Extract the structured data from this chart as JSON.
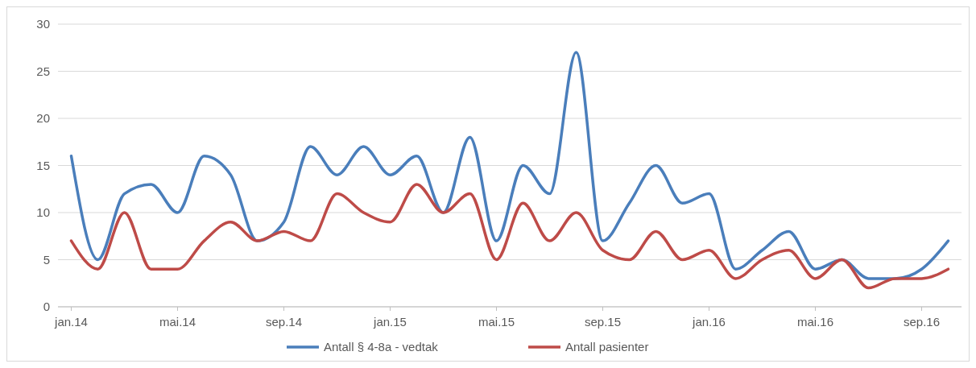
{
  "chart_data": {
    "type": "line",
    "categories": [
      "jan.14",
      null,
      null,
      null,
      "mai.14",
      null,
      null,
      null,
      "sep.14",
      null,
      null,
      null,
      "jan.15",
      null,
      null,
      null,
      "mai.15",
      null,
      null,
      null,
      "sep.15",
      null,
      null,
      null,
      "jan.16",
      null,
      null,
      null,
      "mai.16",
      null,
      null,
      null,
      "sep.16",
      null
    ],
    "series": [
      {
        "name": "Antall § 4-8a - vedtak",
        "color": "#4a7ebb",
        "values": [
          16,
          5,
          12,
          13,
          10,
          16,
          14,
          7,
          9,
          17,
          14,
          17,
          14,
          16,
          10,
          18,
          7,
          15,
          12,
          27,
          7,
          11,
          15,
          11,
          12,
          4,
          6,
          8,
          4,
          5,
          3,
          3,
          4,
          7
        ]
      },
      {
        "name": "Antall pasienter",
        "color": "#be4b48",
        "values": [
          7,
          4,
          10,
          4,
          4,
          7,
          9,
          7,
          8,
          7,
          12,
          10,
          9,
          13,
          10,
          12,
          5,
          11,
          7,
          10,
          6,
          5,
          8,
          5,
          6,
          3,
          5,
          6,
          3,
          5,
          2,
          3,
          3,
          4
        ]
      }
    ],
    "ylim": [
      0,
      30
    ],
    "yticks": [
      0,
      5,
      10,
      15,
      20,
      25,
      30
    ],
    "grid": "y",
    "legend": "bottom",
    "marker": "none",
    "line_style": "solid"
  }
}
